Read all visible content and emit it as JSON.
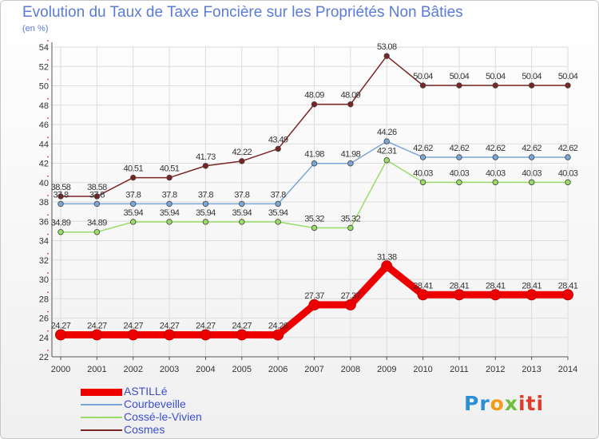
{
  "chart_data": {
    "type": "line",
    "title": "Evolution du Taux de Taxe Foncière sur les Propriétés Non Bâties",
    "subtitle": "(en %)",
    "xlabel": "",
    "ylabel": "",
    "ylim": [
      22,
      54
    ],
    "yticks": [
      "22",
      "24",
      "26",
      "28",
      "30",
      "32",
      "34",
      "36",
      "38",
      "40",
      "42",
      "44",
      "46",
      "48",
      "50",
      "52",
      "54"
    ],
    "categories": [
      "2000",
      "2001",
      "2002",
      "2003",
      "2004",
      "2005",
      "2006",
      "2007",
      "2008",
      "2009",
      "2010",
      "2011",
      "2012",
      "2013",
      "2014"
    ],
    "grid": true,
    "legend_position": "bottom-left",
    "series": [
      {
        "name": "ASTILLé",
        "color": "#ee0000",
        "values": [
          24.27,
          24.27,
          24.27,
          24.27,
          24.27,
          24.27,
          24.26,
          27.37,
          27.37,
          31.38,
          28.41,
          28.41,
          28.41,
          28.41,
          28.41
        ],
        "labels": [
          "24.27",
          "24.27",
          "24.27",
          "24.27",
          "24.27",
          "24.27",
          "24.26",
          "27.37",
          "27.37",
          "31.38",
          "28.41",
          "28.41",
          "28.41",
          "28.41",
          "28.41"
        ]
      },
      {
        "name": "Courbeveille",
        "color": "#7aa6d8",
        "values": [
          37.8,
          37.8,
          37.8,
          37.8,
          37.8,
          37.8,
          37.8,
          41.98,
          41.98,
          44.26,
          42.62,
          42.62,
          42.62,
          42.62,
          42.62
        ],
        "labels": [
          "37.8",
          "37.8",
          "37.8",
          "37.8",
          "37.8",
          "37.8",
          "37.8",
          "41.98",
          "41.98",
          "44.26",
          "42.62",
          "42.62",
          "42.62",
          "42.62",
          "42.62"
        ]
      },
      {
        "name": "Cossé-le-Vivien",
        "color": "#99dd66",
        "values": [
          34.89,
          34.89,
          35.94,
          35.94,
          35.94,
          35.94,
          35.94,
          35.32,
          35.32,
          42.31,
          40.03,
          40.03,
          40.03,
          40.03,
          40.03
        ],
        "labels": [
          "34.89",
          "34.89",
          "35.94",
          "35.94",
          "35.94",
          "35.94",
          "35.94",
          "35.32",
          "35.32",
          "42.31",
          "40.03",
          "40.03",
          "40.03",
          "40.03",
          "40.03"
        ]
      },
      {
        "name": "Cosmes",
        "color": "#7a2424",
        "values": [
          38.58,
          38.58,
          40.51,
          40.51,
          41.73,
          42.22,
          43.49,
          48.09,
          48.09,
          53.08,
          50.04,
          50.04,
          50.04,
          50.04,
          50.04
        ],
        "labels": [
          "38.58",
          "38.58",
          "40.51",
          "40.51",
          "41.73",
          "42.22",
          "43.49",
          "48.09",
          "48.09",
          "53.08",
          "50.04",
          "50.04",
          "50.04",
          "50.04",
          "50.04"
        ]
      }
    ]
  },
  "logo": {
    "text_1": "Pr",
    "text_2": "o",
    "text_3": "x",
    "text_4": "iti"
  }
}
